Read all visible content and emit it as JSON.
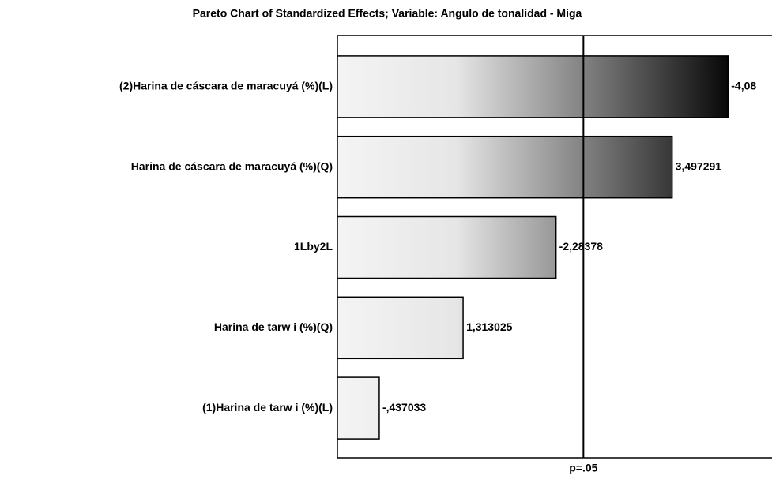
{
  "chart_data": {
    "type": "pareto",
    "title": "Pareto Chart of Standardized Effects; Variable: Angulo de tonalidad - Miga",
    "categories": [
      "(2)Harina de cáscara de maracuyá (%)(L)",
      "Harina de cáscara de maracuyá (%)(Q)",
      "1Lby2L",
      "Harina de tarw i (%)(Q)",
      "(1)Harina de tarw i (%)(L)"
    ],
    "values": [
      -4.08,
      3.497291,
      -2.28378,
      1.313025,
      -0.437033
    ],
    "value_labels": [
      "-4,08",
      "3,497291",
      "-2,28378",
      "1,313025",
      "-,437033"
    ],
    "xlim": [
      0,
      4.54
    ],
    "ref_line": {
      "value": 2.57,
      "label": "p=.05"
    }
  }
}
